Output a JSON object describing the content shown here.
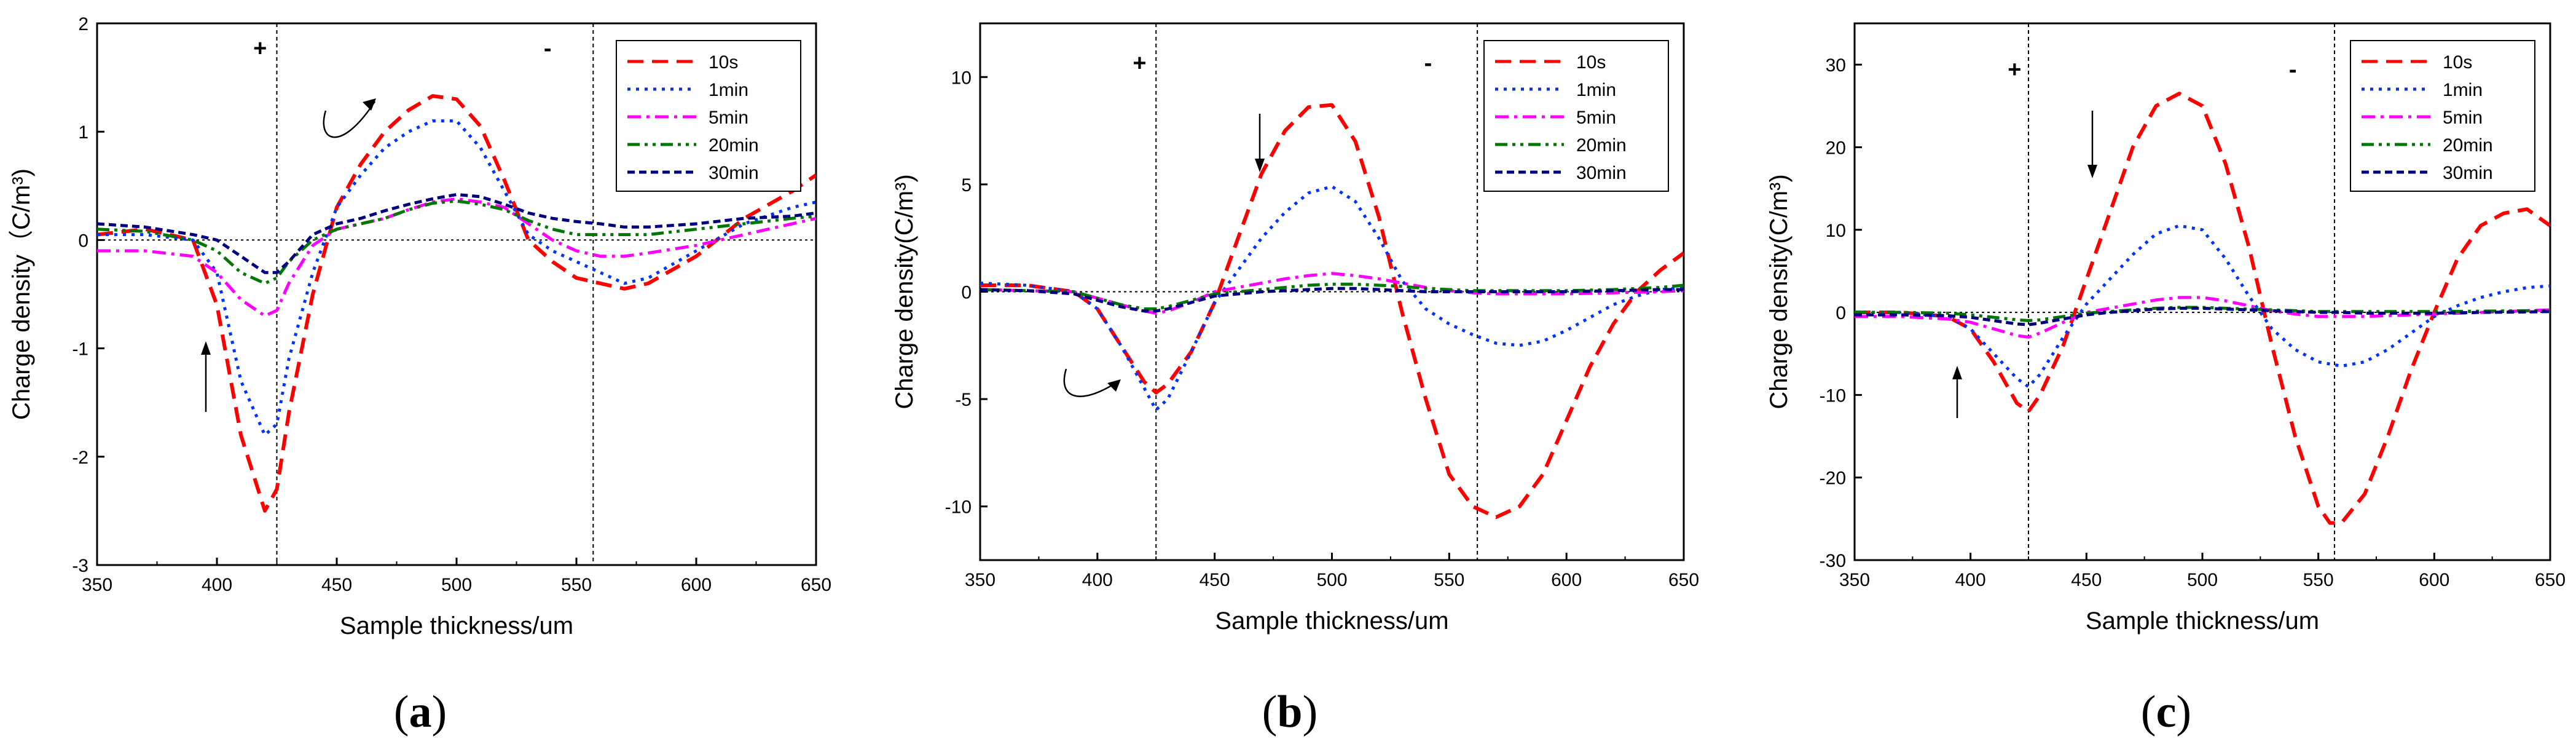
{
  "chart_data": [
    {
      "type": "line",
      "panel": "a",
      "caption_open": "(",
      "caption_letter": "a",
      "caption_close": ")",
      "xlabel": "Sample thickness/um",
      "ylabel": "Charge density（C/m³)",
      "xlim": [
        350,
        650
      ],
      "ylim": [
        -3,
        2
      ],
      "xticks": [
        350,
        400,
        450,
        500,
        550,
        600,
        650
      ],
      "yticks": [
        -3,
        -2,
        -1,
        0,
        1,
        2
      ],
      "vlines": [
        425,
        557
      ],
      "sign_plus": "+",
      "sign_minus": "-",
      "sign_plus_x": 418,
      "sign_minus_x": 538,
      "sign_y": 1.7,
      "series": [
        {
          "name": "10s",
          "color": "#ff0000",
          "dash": "dash",
          "x": [
            350,
            370,
            390,
            400,
            410,
            420,
            425,
            430,
            440,
            450,
            460,
            470,
            480,
            490,
            500,
            510,
            520,
            530,
            540,
            550,
            560,
            570,
            580,
            600,
            620,
            640,
            650
          ],
          "values": [
            0.05,
            0.1,
            0.0,
            -0.6,
            -1.8,
            -2.5,
            -2.3,
            -1.6,
            -0.5,
            0.3,
            0.7,
            1.0,
            1.2,
            1.33,
            1.3,
            1.05,
            0.55,
            0.0,
            -0.2,
            -0.35,
            -0.4,
            -0.45,
            -0.4,
            -0.15,
            0.2,
            0.45,
            0.6
          ]
        },
        {
          "name": "1min",
          "color": "#0033ff",
          "dash": "dot",
          "x": [
            350,
            370,
            390,
            400,
            410,
            420,
            425,
            430,
            440,
            450,
            460,
            470,
            480,
            490,
            500,
            510,
            520,
            530,
            540,
            550,
            560,
            570,
            580,
            600,
            620,
            640,
            650
          ],
          "values": [
            0.05,
            0.05,
            0.0,
            -0.3,
            -1.3,
            -1.8,
            -1.7,
            -1.1,
            -0.3,
            0.3,
            0.6,
            0.85,
            1.0,
            1.1,
            1.1,
            0.85,
            0.45,
            0.05,
            -0.1,
            -0.2,
            -0.3,
            -0.4,
            -0.35,
            -0.1,
            0.15,
            0.3,
            0.35
          ]
        },
        {
          "name": "5min",
          "color": "#ff00ff",
          "dash": "dashdot",
          "x": [
            350,
            370,
            390,
            400,
            410,
            420,
            425,
            430,
            440,
            450,
            460,
            470,
            480,
            490,
            500,
            510,
            520,
            530,
            540,
            550,
            560,
            570,
            580,
            600,
            620,
            640,
            650
          ],
          "values": [
            -0.1,
            -0.1,
            -0.15,
            -0.3,
            -0.55,
            -0.7,
            -0.65,
            -0.4,
            -0.05,
            0.1,
            0.15,
            0.2,
            0.28,
            0.35,
            0.38,
            0.35,
            0.3,
            0.15,
            0.0,
            -0.1,
            -0.15,
            -0.15,
            -0.12,
            -0.05,
            0.05,
            0.15,
            0.2
          ]
        },
        {
          "name": "20min",
          "color": "#007700",
          "dash": "dashdotdot",
          "x": [
            350,
            370,
            390,
            400,
            410,
            420,
            425,
            430,
            440,
            450,
            460,
            470,
            480,
            490,
            500,
            510,
            520,
            530,
            540,
            550,
            560,
            570,
            580,
            600,
            620,
            640,
            650
          ],
          "values": [
            0.1,
            0.08,
            0.0,
            -0.1,
            -0.3,
            -0.4,
            -0.35,
            -0.2,
            0.0,
            0.1,
            0.15,
            0.2,
            0.28,
            0.34,
            0.36,
            0.33,
            0.28,
            0.18,
            0.1,
            0.05,
            0.05,
            0.05,
            0.05,
            0.1,
            0.15,
            0.2,
            0.22
          ]
        },
        {
          "name": "30min",
          "color": "#000080",
          "dash": "shortdash",
          "x": [
            350,
            370,
            390,
            400,
            410,
            420,
            425,
            430,
            440,
            450,
            460,
            470,
            480,
            490,
            500,
            510,
            520,
            530,
            540,
            550,
            560,
            570,
            580,
            600,
            620,
            640,
            650
          ],
          "values": [
            0.15,
            0.12,
            0.05,
            0.0,
            -0.15,
            -0.3,
            -0.3,
            -0.2,
            0.05,
            0.15,
            0.2,
            0.27,
            0.33,
            0.38,
            0.42,
            0.4,
            0.33,
            0.25,
            0.2,
            0.17,
            0.15,
            0.12,
            0.12,
            0.15,
            0.2,
            0.22,
            0.25
          ]
        }
      ]
    },
    {
      "type": "line",
      "panel": "b",
      "caption_open": "(",
      "caption_letter": "b",
      "caption_close": ")",
      "xlabel": "Sample thickness/um",
      "ylabel": "Charge density(C/m³)",
      "xlim": [
        350,
        650
      ],
      "ylim": [
        -12.5,
        12.5
      ],
      "xticks": [
        350,
        400,
        450,
        500,
        550,
        600,
        650
      ],
      "yticks": [
        -10,
        -5,
        0,
        5,
        10
      ],
      "vlines": [
        425,
        562
      ],
      "sign_plus": "+",
      "sign_minus": "-",
      "sign_plus_x": 418,
      "sign_minus_x": 541,
      "sign_y": 10.3,
      "series": [
        {
          "name": "10s",
          "color": "#ff0000",
          "dash": "dash",
          "x": [
            350,
            370,
            390,
            400,
            410,
            420,
            425,
            430,
            440,
            450,
            460,
            470,
            480,
            490,
            500,
            510,
            520,
            530,
            540,
            550,
            560,
            570,
            580,
            590,
            600,
            610,
            620,
            630,
            640,
            650
          ],
          "values": [
            0.3,
            0.3,
            0.0,
            -0.8,
            -2.5,
            -4.2,
            -4.7,
            -4.3,
            -2.8,
            -0.5,
            2.5,
            5.5,
            7.5,
            8.6,
            8.7,
            7.0,
            3.5,
            -1.0,
            -5.0,
            -8.5,
            -10.0,
            -10.5,
            -10.0,
            -8.5,
            -6.0,
            -3.5,
            -1.5,
            0.0,
            1.0,
            1.8
          ]
        },
        {
          "name": "1min",
          "color": "#0033ff",
          "dash": "dot",
          "x": [
            350,
            370,
            390,
            400,
            410,
            420,
            425,
            430,
            440,
            450,
            460,
            470,
            480,
            490,
            500,
            510,
            520,
            530,
            540,
            550,
            560,
            570,
            580,
            590,
            600,
            610,
            620,
            630,
            640,
            650
          ],
          "values": [
            0.4,
            0.3,
            0.0,
            -0.8,
            -2.5,
            -4.5,
            -5.5,
            -5.0,
            -2.8,
            -0.5,
            1.0,
            2.5,
            3.7,
            4.6,
            4.9,
            4.2,
            2.5,
            0.5,
            -0.8,
            -1.5,
            -2.0,
            -2.4,
            -2.5,
            -2.3,
            -1.8,
            -1.2,
            -0.6,
            -0.2,
            0.1,
            0.2
          ]
        },
        {
          "name": "5min",
          "color": "#ff00ff",
          "dash": "dashdot",
          "x": [
            350,
            370,
            390,
            400,
            410,
            420,
            425,
            430,
            440,
            450,
            460,
            470,
            480,
            490,
            500,
            510,
            520,
            530,
            540,
            550,
            560,
            570,
            580,
            600,
            620,
            640,
            650
          ],
          "values": [
            0.1,
            0.05,
            0.0,
            -0.3,
            -0.6,
            -0.9,
            -1.0,
            -0.9,
            -0.5,
            0.0,
            0.2,
            0.4,
            0.6,
            0.75,
            0.85,
            0.75,
            0.6,
            0.4,
            0.2,
            0.05,
            -0.05,
            -0.1,
            -0.1,
            -0.1,
            -0.05,
            0.0,
            0.05
          ]
        },
        {
          "name": "20min",
          "color": "#007700",
          "dash": "dashdotdot",
          "x": [
            350,
            370,
            390,
            400,
            410,
            420,
            425,
            430,
            440,
            450,
            460,
            470,
            480,
            490,
            500,
            510,
            520,
            530,
            540,
            550,
            560,
            570,
            580,
            600,
            620,
            640,
            650
          ],
          "values": [
            0.1,
            0.05,
            0.0,
            -0.3,
            -0.6,
            -0.8,
            -0.8,
            -0.7,
            -0.4,
            -0.1,
            0.0,
            0.1,
            0.2,
            0.3,
            0.35,
            0.35,
            0.3,
            0.25,
            0.15,
            0.1,
            0.05,
            0.05,
            0.05,
            0.05,
            0.1,
            0.2,
            0.3
          ]
        },
        {
          "name": "30min",
          "color": "#000080",
          "dash": "shortdash",
          "x": [
            350,
            370,
            390,
            400,
            410,
            420,
            425,
            430,
            440,
            450,
            460,
            470,
            480,
            490,
            500,
            510,
            520,
            530,
            540,
            550,
            560,
            570,
            580,
            600,
            620,
            640,
            650
          ],
          "values": [
            0.1,
            0.05,
            -0.1,
            -0.4,
            -0.7,
            -0.9,
            -0.9,
            -0.8,
            -0.5,
            -0.2,
            -0.1,
            0.0,
            0.05,
            0.1,
            0.15,
            0.15,
            0.1,
            0.05,
            0.0,
            0.0,
            0.0,
            0.0,
            0.0,
            0.0,
            0.05,
            0.1,
            0.1
          ]
        }
      ]
    },
    {
      "type": "line",
      "panel": "c",
      "caption_open": "(",
      "caption_letter": "c",
      "caption_close": ")",
      "xlabel": "Sample thickness/um",
      "ylabel": "Charge density(C/m³)",
      "xlim": [
        350,
        650
      ],
      "ylim": [
        -30,
        35
      ],
      "xticks": [
        350,
        400,
        450,
        500,
        550,
        600,
        650
      ],
      "yticks": [
        -30,
        -20,
        -10,
        0,
        10,
        20,
        30
      ],
      "vlines": [
        425,
        557
      ],
      "sign_plus": "+",
      "sign_minus": "-",
      "sign_plus_x": 419,
      "sign_minus_x": 539,
      "sign_y": 28.5,
      "series": [
        {
          "name": "10s",
          "color": "#ff0000",
          "dash": "dash",
          "x": [
            350,
            370,
            390,
            400,
            410,
            420,
            425,
            430,
            440,
            450,
            460,
            470,
            480,
            490,
            500,
            510,
            520,
            530,
            540,
            550,
            555,
            560,
            570,
            580,
            590,
            600,
            610,
            620,
            630,
            640,
            650
          ],
          "values": [
            0.0,
            0.0,
            -0.5,
            -2.0,
            -6.0,
            -11.0,
            -12.0,
            -10.0,
            -4.0,
            4.0,
            12.0,
            20.0,
            25.0,
            26.5,
            25.0,
            18.0,
            8.0,
            -4.0,
            -15.0,
            -23.5,
            -25.5,
            -25.5,
            -22.0,
            -15.0,
            -7.0,
            0.0,
            6.5,
            10.5,
            12.0,
            12.5,
            10.5
          ]
        },
        {
          "name": "1min",
          "color": "#0033ff",
          "dash": "dot",
          "x": [
            350,
            370,
            390,
            400,
            410,
            420,
            425,
            430,
            440,
            450,
            460,
            470,
            480,
            490,
            500,
            510,
            520,
            530,
            540,
            550,
            560,
            570,
            580,
            590,
            600,
            610,
            620,
            630,
            640,
            650
          ],
          "values": [
            0.0,
            0.0,
            -0.5,
            -2.0,
            -5.0,
            -8.0,
            -9.0,
            -7.5,
            -3.0,
            1.0,
            4.0,
            7.0,
            9.5,
            10.5,
            10.0,
            6.5,
            2.0,
            -2.0,
            -4.5,
            -6.0,
            -6.5,
            -6.0,
            -4.5,
            -2.5,
            -0.5,
            0.8,
            1.8,
            2.5,
            3.0,
            3.2
          ]
        },
        {
          "name": "5min",
          "color": "#ff00ff",
          "dash": "dashdot",
          "x": [
            350,
            370,
            390,
            400,
            410,
            420,
            425,
            430,
            440,
            450,
            460,
            470,
            480,
            490,
            500,
            510,
            520,
            530,
            540,
            550,
            560,
            570,
            580,
            600,
            620,
            640,
            650
          ],
          "values": [
            -0.5,
            -0.5,
            -0.8,
            -1.2,
            -2.0,
            -2.8,
            -3.0,
            -2.5,
            -1.2,
            0.0,
            0.5,
            1.0,
            1.5,
            1.8,
            1.8,
            1.4,
            0.8,
            0.2,
            -0.2,
            -0.5,
            -0.5,
            -0.5,
            -0.4,
            -0.2,
            0.0,
            0.2,
            0.3
          ]
        },
        {
          "name": "20min",
          "color": "#007700",
          "dash": "dashdotdot",
          "x": [
            350,
            370,
            390,
            400,
            410,
            420,
            425,
            430,
            440,
            450,
            460,
            470,
            480,
            490,
            500,
            510,
            520,
            530,
            540,
            550,
            560,
            570,
            580,
            600,
            620,
            640,
            650
          ],
          "values": [
            0.0,
            0.0,
            -0.1,
            -0.3,
            -0.6,
            -0.9,
            -1.0,
            -0.9,
            -0.5,
            -0.1,
            0.1,
            0.3,
            0.5,
            0.6,
            0.6,
            0.5,
            0.4,
            0.3,
            0.2,
            0.1,
            0.1,
            0.1,
            0.1,
            0.1,
            0.15,
            0.2,
            0.2
          ]
        },
        {
          "name": "30min",
          "color": "#000080",
          "dash": "shortdash",
          "x": [
            350,
            370,
            390,
            400,
            410,
            420,
            425,
            430,
            440,
            450,
            460,
            470,
            480,
            490,
            500,
            510,
            520,
            530,
            540,
            550,
            560,
            570,
            580,
            600,
            620,
            640,
            650
          ],
          "values": [
            -0.3,
            -0.3,
            -0.4,
            -0.6,
            -1.0,
            -1.4,
            -1.5,
            -1.3,
            -0.8,
            -0.3,
            0.0,
            0.2,
            0.4,
            0.5,
            0.5,
            0.4,
            0.3,
            0.2,
            0.1,
            0.0,
            0.0,
            -0.1,
            -0.1,
            -0.1,
            0.0,
            0.05,
            0.1
          ]
        }
      ]
    }
  ]
}
